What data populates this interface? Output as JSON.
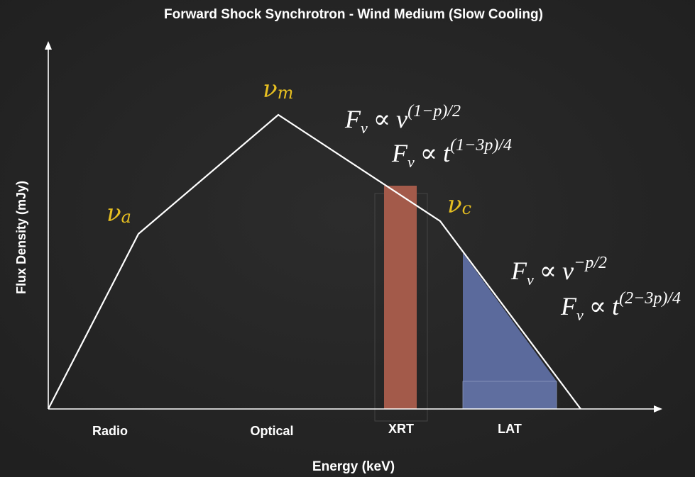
{
  "title": "Forward Shock Synchrotron - Wind Medium (Slow Cooling)",
  "y_axis_label": "Flux Density (mJy)",
  "x_axis_label": "Energy (keV)",
  "bands": [
    "Radio",
    "Optical",
    "XRT",
    "LAT"
  ],
  "breaks": [
    {
      "symbol": "ν",
      "sub": "a"
    },
    {
      "symbol": "ν",
      "sub": "m"
    },
    {
      "symbol": "ν",
      "sub": "c"
    }
  ],
  "formulas": [
    {
      "base": "F",
      "sub": "ν",
      "rel": "∝",
      "var": "ν",
      "exp": "(1−p)/2"
    },
    {
      "base": "F",
      "sub": "ν",
      "rel": "∝",
      "var": "t",
      "exp": "(1−3p)/4"
    },
    {
      "base": "F",
      "sub": "ν",
      "rel": "∝",
      "var": "ν",
      "exp": "−p/2"
    },
    {
      "base": "F",
      "sub": "ν",
      "rel": "∝",
      "var": "t",
      "exp": "(2−3p)/4"
    }
  ]
}
